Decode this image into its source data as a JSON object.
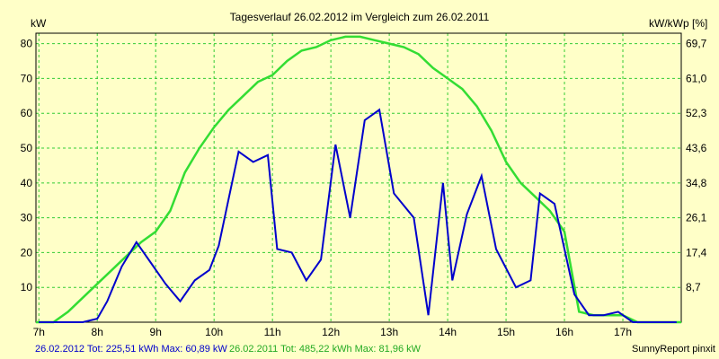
{
  "chart_data": {
    "type": "line",
    "title": "Tagesverlauf 26.02.2012 im Vergleich zum 26.02.2011",
    "ylabel_left": "kW",
    "ylabel_right": "kW/kWp [%]",
    "x_ticks": [
      "7h",
      "8h",
      "9h",
      "10h",
      "11h",
      "12h",
      "13h",
      "14h",
      "15h",
      "16h",
      "17h"
    ],
    "x_range": [
      6.95,
      18.0
    ],
    "ylim": [
      0,
      83
    ],
    "y_ticks_left": [
      "10",
      "20",
      "30",
      "40",
      "50",
      "60",
      "70",
      "80"
    ],
    "y_ticks_right": [
      "8,7",
      "17,4",
      "26,1",
      "34,8",
      "43,6",
      "52,3",
      "61,0",
      "69,7"
    ],
    "grid": true,
    "colors": {
      "background": "#ffffc8",
      "grid": "#33cc33",
      "series_2012": "#0000cc",
      "series_2011": "#33dd33",
      "axes": "#000000"
    },
    "series": [
      {
        "name": "26.02.2012",
        "x": [
          7.0,
          7.25,
          7.5,
          7.75,
          8.0,
          8.17,
          8.42,
          8.67,
          8.92,
          9.17,
          9.42,
          9.67,
          9.92,
          10.08,
          10.42,
          10.67,
          10.92,
          11.08,
          11.33,
          11.58,
          11.83,
          12.08,
          12.33,
          12.58,
          12.83,
          13.08,
          13.42,
          13.67,
          13.92,
          14.08,
          14.33,
          14.58,
          14.83,
          15.17,
          15.42,
          15.58,
          15.83,
          16.17,
          16.42,
          16.67,
          16.92,
          17.17,
          17.42,
          17.92
        ],
        "values": [
          0,
          0,
          0,
          0,
          1,
          6,
          16,
          23,
          17,
          11,
          6,
          12,
          15,
          22,
          49,
          46,
          48,
          21,
          20,
          12,
          18,
          51,
          30,
          58,
          61,
          37,
          30,
          2,
          40,
          12,
          31,
          42,
          21,
          10,
          12,
          37,
          34,
          8,
          2,
          2,
          3,
          0,
          0,
          0
        ]
      },
      {
        "name": "26.02.2011",
        "x": [
          6.95,
          7.25,
          7.5,
          7.75,
          8.0,
          8.25,
          8.5,
          8.75,
          9.0,
          9.25,
          9.5,
          9.75,
          10.0,
          10.25,
          10.5,
          10.75,
          11.0,
          11.25,
          11.5,
          11.75,
          12.0,
          12.25,
          12.5,
          12.75,
          13.0,
          13.25,
          13.5,
          13.75,
          14.0,
          14.25,
          14.5,
          14.75,
          15.0,
          15.25,
          15.5,
          15.75,
          16.0,
          16.25,
          16.5,
          16.75,
          17.0,
          17.25,
          17.5,
          17.75,
          18.0
        ],
        "values": [
          0,
          0,
          3,
          7,
          11,
          15,
          19,
          23,
          26,
          32,
          43,
          50,
          56,
          61,
          65,
          69,
          71,
          75,
          78,
          79,
          81,
          82,
          82,
          81,
          80,
          79,
          77,
          73,
          70,
          67,
          62,
          55,
          46,
          40,
          36,
          32,
          26,
          3,
          2,
          2,
          2,
          0,
          0,
          0,
          0
        ]
      }
    ]
  },
  "footer": {
    "series1_label": "26.02.2012 Tot: 225,51 kWh Max: 60,89 kW",
    "series2_label": "26.02.2011 Tot: 485,22 kWh Max: 81,96 kW",
    "credit": "SunnyReport pinxit"
  }
}
